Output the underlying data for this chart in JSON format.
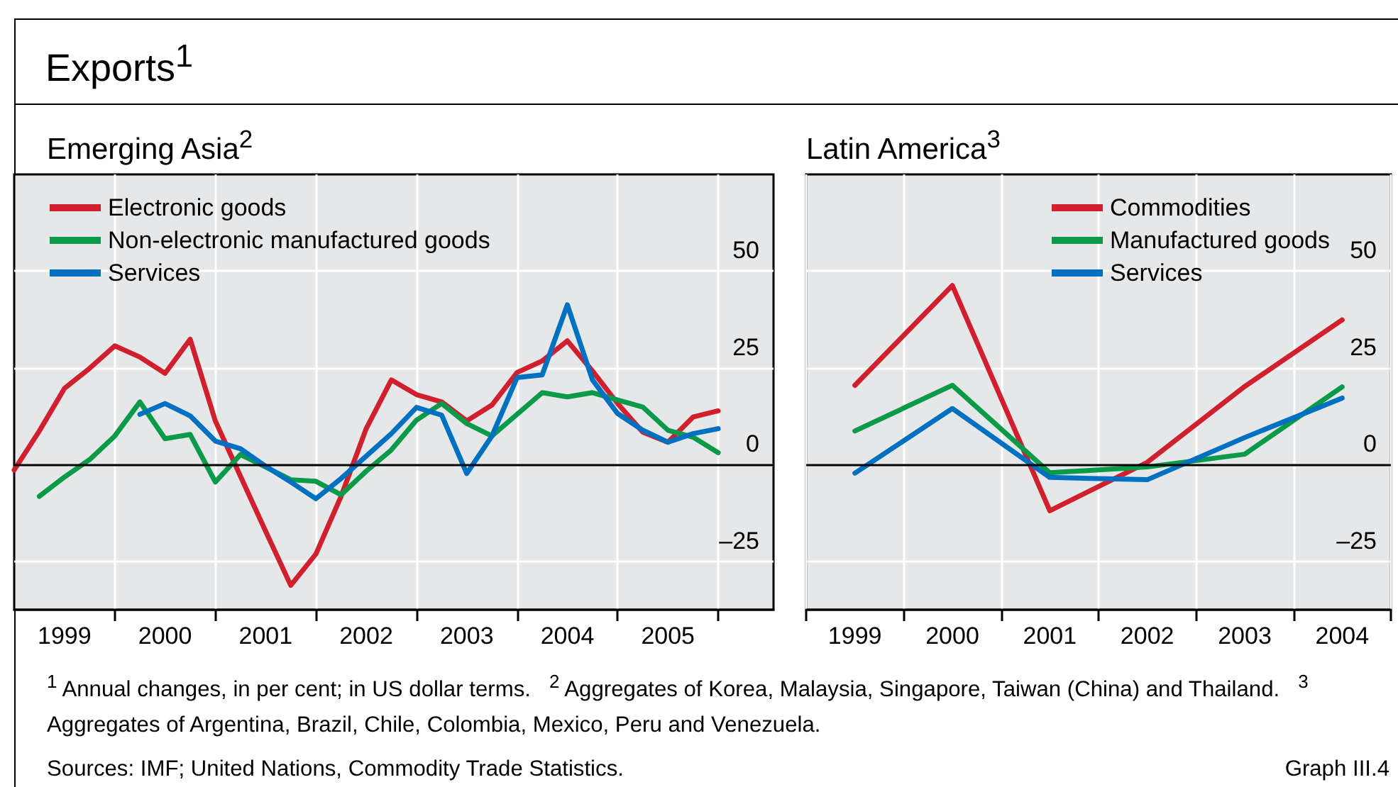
{
  "chart_data": [
    {
      "type": "line",
      "title": "Exports$^{1}$",
      "subtitle": "Emerging Asia$^{2}$",
      "x": [
        1999,
        1999.25,
        1999.5,
        1999.75,
        2000,
        2000.25,
        2000.5,
        2000.75,
        2001,
        2001.25,
        2001.5,
        2001.75,
        2002,
        2002.25,
        2002.5,
        2002.75,
        2003,
        2003.25,
        2003.5,
        2003.75,
        2004,
        2004.25,
        2004.5,
        2004.75,
        2005,
        2005.25,
        2005.5,
        2005.75,
        2006
      ],
      "series": [
        {
          "name": "Electronic goods",
          "color": "#d0202e",
          "values": [
            -1.4,
            8.7,
            19.7,
            24.9,
            30.7,
            27.8,
            23.6,
            32.4,
            11.3,
            -3.0,
            -17.2,
            -31.2,
            -23.1,
            -8.2,
            9.3,
            21.9,
            18.1,
            16.2,
            11.3,
            15.4,
            23.8,
            26.8,
            32.0,
            24.2,
            15.8,
            8.4,
            5.8,
            12.3,
            13.9
          ]
        },
        {
          "name": "Non-electronic manufactured goods",
          "color": "#0a9a48",
          "values": [
            null,
            -8.2,
            -3.2,
            1.3,
            7.4,
            16.2,
            6.7,
            7.8,
            -4.5,
            2.6,
            -0.6,
            -3.9,
            -4.3,
            -7.8,
            -1.7,
            3.8,
            11.5,
            15.8,
            10.6,
            7.4,
            13.0,
            18.6,
            17.5,
            18.6,
            16.7,
            14.9,
            8.9,
            7.1,
            3.1
          ]
        },
        {
          "name": "Services",
          "color": "#0070c0",
          "values": [
            null,
            null,
            null,
            null,
            null,
            13.0,
            15.8,
            12.6,
            6.1,
            4.1,
            -0.4,
            -4.5,
            -8.8,
            -3.6,
            2.2,
            8.0,
            14.8,
            12.8,
            -2.3,
            7.4,
            22.5,
            23.2,
            41.3,
            21.9,
            13.2,
            8.9,
            5.8,
            8.0,
            9.3
          ]
        }
      ],
      "xlim": [
        1999,
        2006.55
      ],
      "xticks": [
        {
          "value": 1999.5,
          "label": "1999"
        },
        {
          "value": 2000.5,
          "label": "2000"
        },
        {
          "value": 2001.5,
          "label": "2001"
        },
        {
          "value": 2002.5,
          "label": "2002"
        },
        {
          "value": 2003.5,
          "label": "2003"
        },
        {
          "value": 2004.5,
          "label": "2004"
        },
        {
          "value": 2005.5,
          "label": "2005"
        },
        {
          "value": 2000,
          "label": null
        },
        {
          "value": 2001,
          "label": null
        },
        {
          "value": 2002,
          "label": null
        },
        {
          "value": 2003,
          "label": null
        },
        {
          "value": 2004,
          "label": null
        },
        {
          "value": 2005,
          "label": null
        },
        {
          "value": 2006,
          "label": null
        }
      ],
      "ylim": [
        -37.5,
        75
      ],
      "yticks": [
        {
          "value": -25,
          "label": "–25"
        },
        0,
        25,
        50
      ],
      "ref_lines": [
        {
          "axis": "y",
          "value": 0,
          "color": "#000000"
        }
      ],
      "grid": true,
      "legend": "top left"
    },
    {
      "type": "line",
      "subtitle": "Latin America$^{3}$",
      "categories": [
        "1999",
        "2000",
        "2001",
        "2002",
        "2003",
        "2004"
      ],
      "series": [
        {
          "name": "Commodities",
          "color": "#d0202e",
          "values": [
            20.5,
            46.3,
            -11.9,
            0.6,
            20.2,
            37.4
          ]
        },
        {
          "name": "Manufactured goods",
          "color": "#0a9a48",
          "values": [
            8.7,
            20.5,
            -2.1,
            -0.6,
            2.7,
            20.1
          ]
        },
        {
          "name": "Services",
          "color": "#0070c0",
          "values": [
            -2.2,
            14.5,
            -3.3,
            -3.9,
            7.0,
            17.2
          ]
        }
      ],
      "ylim": [
        -37.5,
        75
      ],
      "yticks": [
        {
          "value": -25,
          "label": "–25"
        },
        0,
        25,
        50
      ],
      "ref_lines": [
        {
          "axis": "y",
          "value": 0,
          "color": "#000000"
        }
      ],
      "grid": true,
      "legend": "top right",
      "annotations": [
        "$^{1}$ Annual changes, in per cent; in US dollar terms.   $^{2}$ Aggregates of Korea, Malaysia, Singapore, Taiwan (China) and Thailand.   $^{3}$ Aggregates of Argentina, Brazil, Chile, Colombia, Mexico, Peru and Venezuela.",
        "Sources: IMF; United Nations, Commodity Trade Statistics.",
        "Graph III.4"
      ]
    }
  ]
}
